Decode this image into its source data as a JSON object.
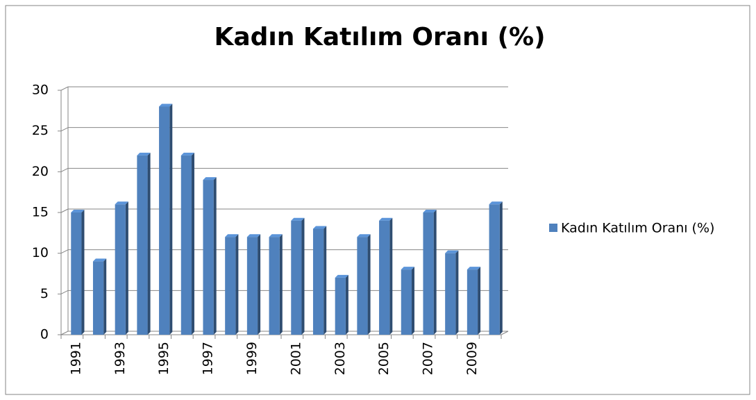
{
  "chart_data": {
    "type": "bar3d",
    "title": "Kadın Katılım Oranı (%)",
    "categories": [
      "1991",
      null,
      "1993",
      null,
      "1995",
      null,
      "1997",
      null,
      "1999",
      null,
      "2001",
      null,
      "2003",
      null,
      "2005",
      null,
      "2007",
      null,
      "2009",
      null
    ],
    "series": [
      {
        "name": "Kadın Katılım Oranı (%)",
        "color": "#4f81bd",
        "values": [
          15,
          9,
          16,
          22,
          28,
          22,
          19,
          12,
          12,
          12,
          14,
          13,
          7,
          12,
          14,
          8,
          15,
          10,
          8,
          16
        ]
      }
    ],
    "ylim": [
      0,
      30
    ],
    "yticks": [
      0,
      5,
      10,
      15,
      20,
      25,
      30
    ],
    "grid": true,
    "legend": "right"
  }
}
